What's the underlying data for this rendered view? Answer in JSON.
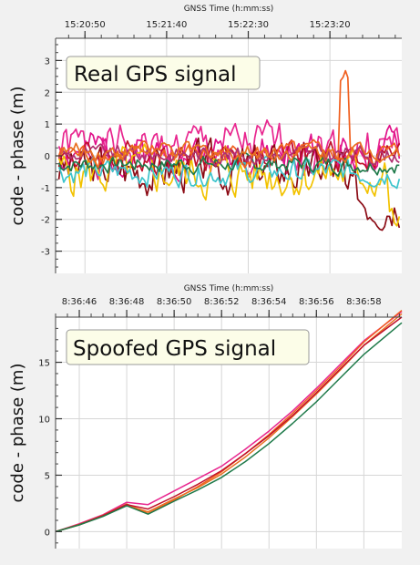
{
  "chart_data": [
    {
      "type": "line",
      "xlabel": "GNSS Time (h:mm:ss)",
      "ylabel": "code - phase  (m)",
      "annotation": "Real GPS signal",
      "x_tick_labels": [
        "15:20:50",
        "15:21:40",
        "15:22:30",
        "15:23:20"
      ],
      "x_tick_seconds": [
        50,
        100,
        150,
        200
      ],
      "xlim": [
        32,
        244
      ],
      "y_ticks": [
        3,
        2,
        1,
        0,
        -1,
        -2,
        -3
      ],
      "y_tick_labels": [
        "3",
        "2",
        "1",
        "0",
        "-1",
        "-2",
        "-3"
      ],
      "ylim": [
        -3.7,
        3.7
      ],
      "grid": true,
      "legend": "none",
      "series": [
        {
          "color": "#e8268f",
          "amp": 0.55,
          "bias": 0.25,
          "seed": 1
        },
        {
          "color": "#e0108a",
          "amp": 0.45,
          "bias": 0.1,
          "seed": 2
        },
        {
          "color": "#8b0a14",
          "amp": 0.55,
          "bias": -0.4,
          "seed": 3
        },
        {
          "color": "#c0102a",
          "amp": 0.35,
          "bias": 0.0,
          "seed": 4
        },
        {
          "color": "#f2c200",
          "amp": 0.55,
          "bias": -0.55,
          "seed": 5
        },
        {
          "color": "#3cc4cc",
          "amp": 0.3,
          "bias": -0.5,
          "seed": 6
        },
        {
          "color": "#1f7a4a",
          "amp": 0.2,
          "bias": -0.25,
          "seed": 7
        },
        {
          "color": "#f06020",
          "amp": 0.25,
          "bias": 0.05,
          "seed": 8
        },
        {
          "color": "#b03070",
          "amp": 0.2,
          "bias": 0.05,
          "seed": 9
        },
        {
          "color": "#e87020",
          "amp": 0.2,
          "bias": 0.15,
          "seed": 10
        }
      ]
    },
    {
      "type": "line",
      "xlabel": "GNSS Time (h:mm:ss)",
      "ylabel": "code - phase  (m)",
      "annotation": "Spoofed GPS signal",
      "x_tick_labels": [
        "8:36:46",
        "8:36:48",
        "8:36:50",
        "8:36:52",
        "8:36:54",
        "8:36:56",
        "8:36:58"
      ],
      "x_tick_seconds": [
        46,
        48,
        50,
        52,
        54,
        56,
        58
      ],
      "xlim": [
        45,
        59.6
      ],
      "y_ticks": [
        15,
        10,
        5,
        0
      ],
      "y_tick_labels": [
        "15",
        "10",
        "5",
        "0"
      ],
      "ylim": [
        -1.5,
        19
      ],
      "grid": true,
      "legend": "none",
      "series": [
        {
          "color": "#e8268f",
          "x": [
            45,
            46,
            47,
            48,
            48.9,
            50,
            51,
            52,
            53,
            54,
            55,
            56,
            57,
            58,
            59.6
          ],
          "y": [
            0,
            0.7,
            1.5,
            2.6,
            2.4,
            3.6,
            4.7,
            5.8,
            7.3,
            8.9,
            10.7,
            12.7,
            14.8,
            16.9,
            19.5
          ]
        },
        {
          "color": "#f06020",
          "x": [
            45,
            46,
            47,
            48,
            48.9,
            50,
            51,
            52,
            53,
            54,
            55,
            56,
            57,
            58,
            59.6
          ],
          "y": [
            0,
            0.65,
            1.45,
            2.45,
            1.6,
            2.8,
            4.0,
            5.3,
            6.9,
            8.6,
            10.5,
            12.5,
            14.6,
            16.8,
            19.6
          ]
        },
        {
          "color": "#e87020",
          "x": [
            45,
            46,
            47,
            48,
            48.9,
            50,
            51,
            52,
            53,
            54,
            55,
            56,
            57,
            58,
            59.6
          ],
          "y": [
            0,
            0.6,
            1.4,
            2.35,
            1.75,
            2.9,
            3.9,
            5.1,
            6.6,
            8.3,
            10.2,
            12.2,
            14.3,
            16.5,
            19.3
          ]
        },
        {
          "color": "#c0102a",
          "x": [
            45,
            46,
            47,
            48,
            48.9,
            50,
            51,
            52,
            53,
            54,
            55,
            56,
            57,
            58,
            59.6
          ],
          "y": [
            0,
            0.62,
            1.42,
            2.4,
            2.0,
            3.1,
            4.2,
            5.4,
            6.9,
            8.5,
            10.3,
            12.3,
            14.4,
            16.5,
            19.0
          ]
        },
        {
          "color": "#1f7a4a",
          "x": [
            45,
            46,
            47,
            48,
            48.9,
            50,
            51,
            52,
            53,
            54,
            55,
            56,
            57,
            58,
            59.6
          ],
          "y": [
            0,
            0.6,
            1.35,
            2.3,
            1.55,
            2.7,
            3.7,
            4.8,
            6.2,
            7.8,
            9.6,
            11.5,
            13.6,
            15.7,
            18.5
          ]
        }
      ]
    }
  ]
}
